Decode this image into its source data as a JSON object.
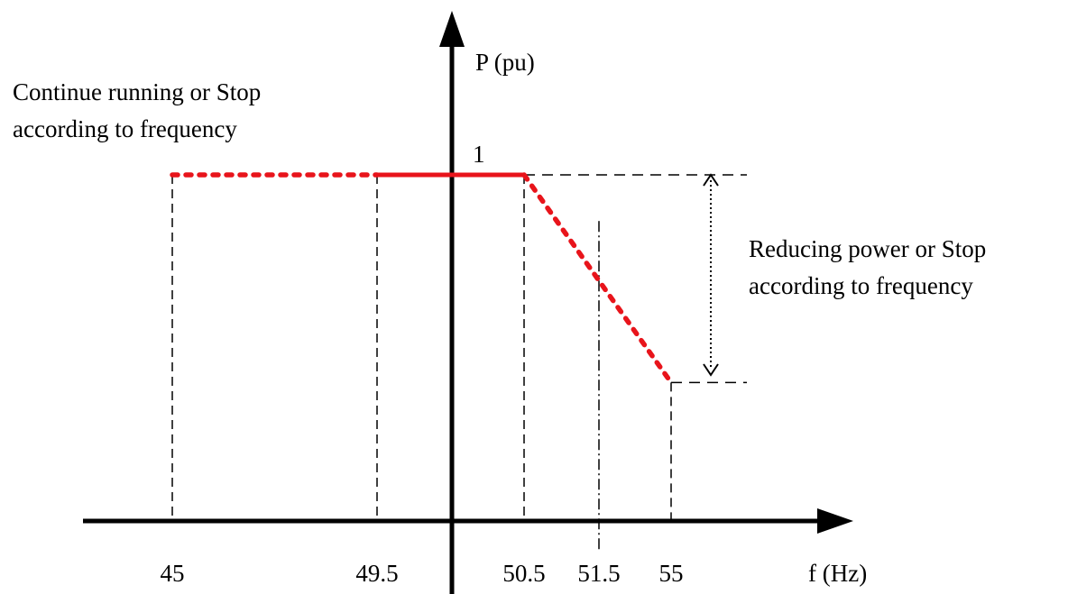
{
  "chart_data": {
    "type": "line",
    "xlabel": "f (Hz)",
    "ylabel": "P (pu)",
    "y_tick_label": "1",
    "x_ticks": [
      "45",
      "49.5",
      "50.5",
      "51.5",
      "55"
    ],
    "series": [
      {
        "style": "dotted",
        "x": [
          45,
          49.5
        ],
        "y": [
          1,
          1
        ]
      },
      {
        "style": "solid",
        "x": [
          49.5,
          50.5
        ],
        "y": [
          1,
          1
        ]
      },
      {
        "style": "dotted",
        "x": [
          50.5,
          55
        ],
        "y": [
          1,
          0.4
        ]
      }
    ],
    "annotations": {
      "left_line1": "Continue running or Stop",
      "left_line2": "according to frequency",
      "right_line1": "Reducing power or Stop",
      "right_line2": "according to frequency"
    },
    "colors": {
      "curve": "#e8141b",
      "axis": "#000000"
    }
  }
}
